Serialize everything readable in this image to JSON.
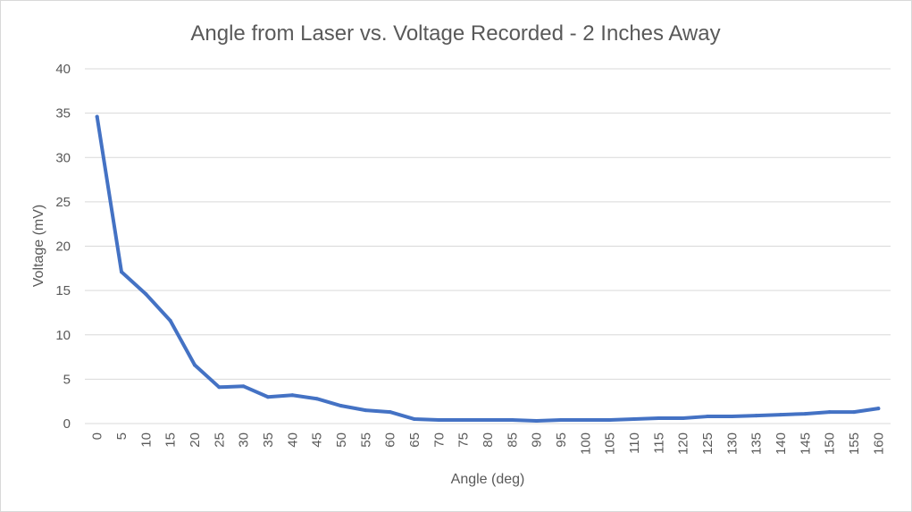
{
  "chart_data": {
    "type": "line",
    "title": "Angle from Laser vs. Voltage Recorded - 2 Inches Away",
    "xlabel": "Angle (deg)",
    "ylabel": "Voltage (mV)",
    "ylim": [
      0,
      40
    ],
    "yticks": [
      0,
      5,
      10,
      15,
      20,
      25,
      30,
      35,
      40
    ],
    "grid": true,
    "legend": "none",
    "categories": [
      "0",
      "5",
      "10",
      "15",
      "20",
      "25",
      "30",
      "35",
      "40",
      "45",
      "50",
      "55",
      "60",
      "65",
      "70",
      "75",
      "80",
      "85",
      "90",
      "95",
      "100",
      "105",
      "110",
      "115",
      "120",
      "125",
      "130",
      "135",
      "140",
      "145",
      "150",
      "155",
      "160"
    ],
    "series": [
      {
        "color": "#4472c4",
        "values": [
          34.6,
          17.1,
          14.6,
          11.6,
          6.6,
          4.1,
          4.2,
          3.0,
          3.2,
          2.8,
          2.0,
          1.5,
          1.3,
          0.5,
          0.4,
          0.4,
          0.4,
          0.4,
          0.3,
          0.4,
          0.4,
          0.4,
          0.5,
          0.6,
          0.6,
          0.8,
          0.8,
          0.9,
          1.0,
          1.1,
          1.3,
          1.3,
          1.7
        ]
      }
    ]
  }
}
